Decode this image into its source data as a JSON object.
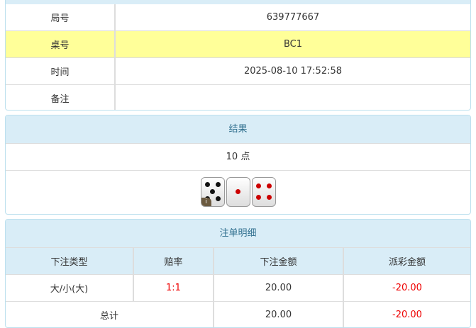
{
  "info": {
    "rows": [
      {
        "label": "局号",
        "value": "639777667"
      },
      {
        "label": "桌号",
        "value": "BC1"
      },
      {
        "label": "时间",
        "value": "2025-08-10 17:52:58"
      },
      {
        "label": "备注",
        "value": ""
      }
    ]
  },
  "result": {
    "title": "结果",
    "points": "10 点",
    "dice": [
      5,
      1,
      4
    ],
    "info_icon": "i"
  },
  "bets": {
    "title": "注单明细",
    "headers": [
      "下注类型",
      "赔率",
      "下注金额",
      "派彩金额"
    ],
    "rows": [
      {
        "type": "大/小(大)",
        "odds": "1:1",
        "amount": "20.00",
        "payout": "-20.00"
      }
    ],
    "total": {
      "label": "总计",
      "amount": "20.00",
      "payout": "-20.00"
    }
  },
  "colors": {
    "header_bg": "#d9edf7",
    "highlight": "#ffff99",
    "negative": "#e00000"
  }
}
